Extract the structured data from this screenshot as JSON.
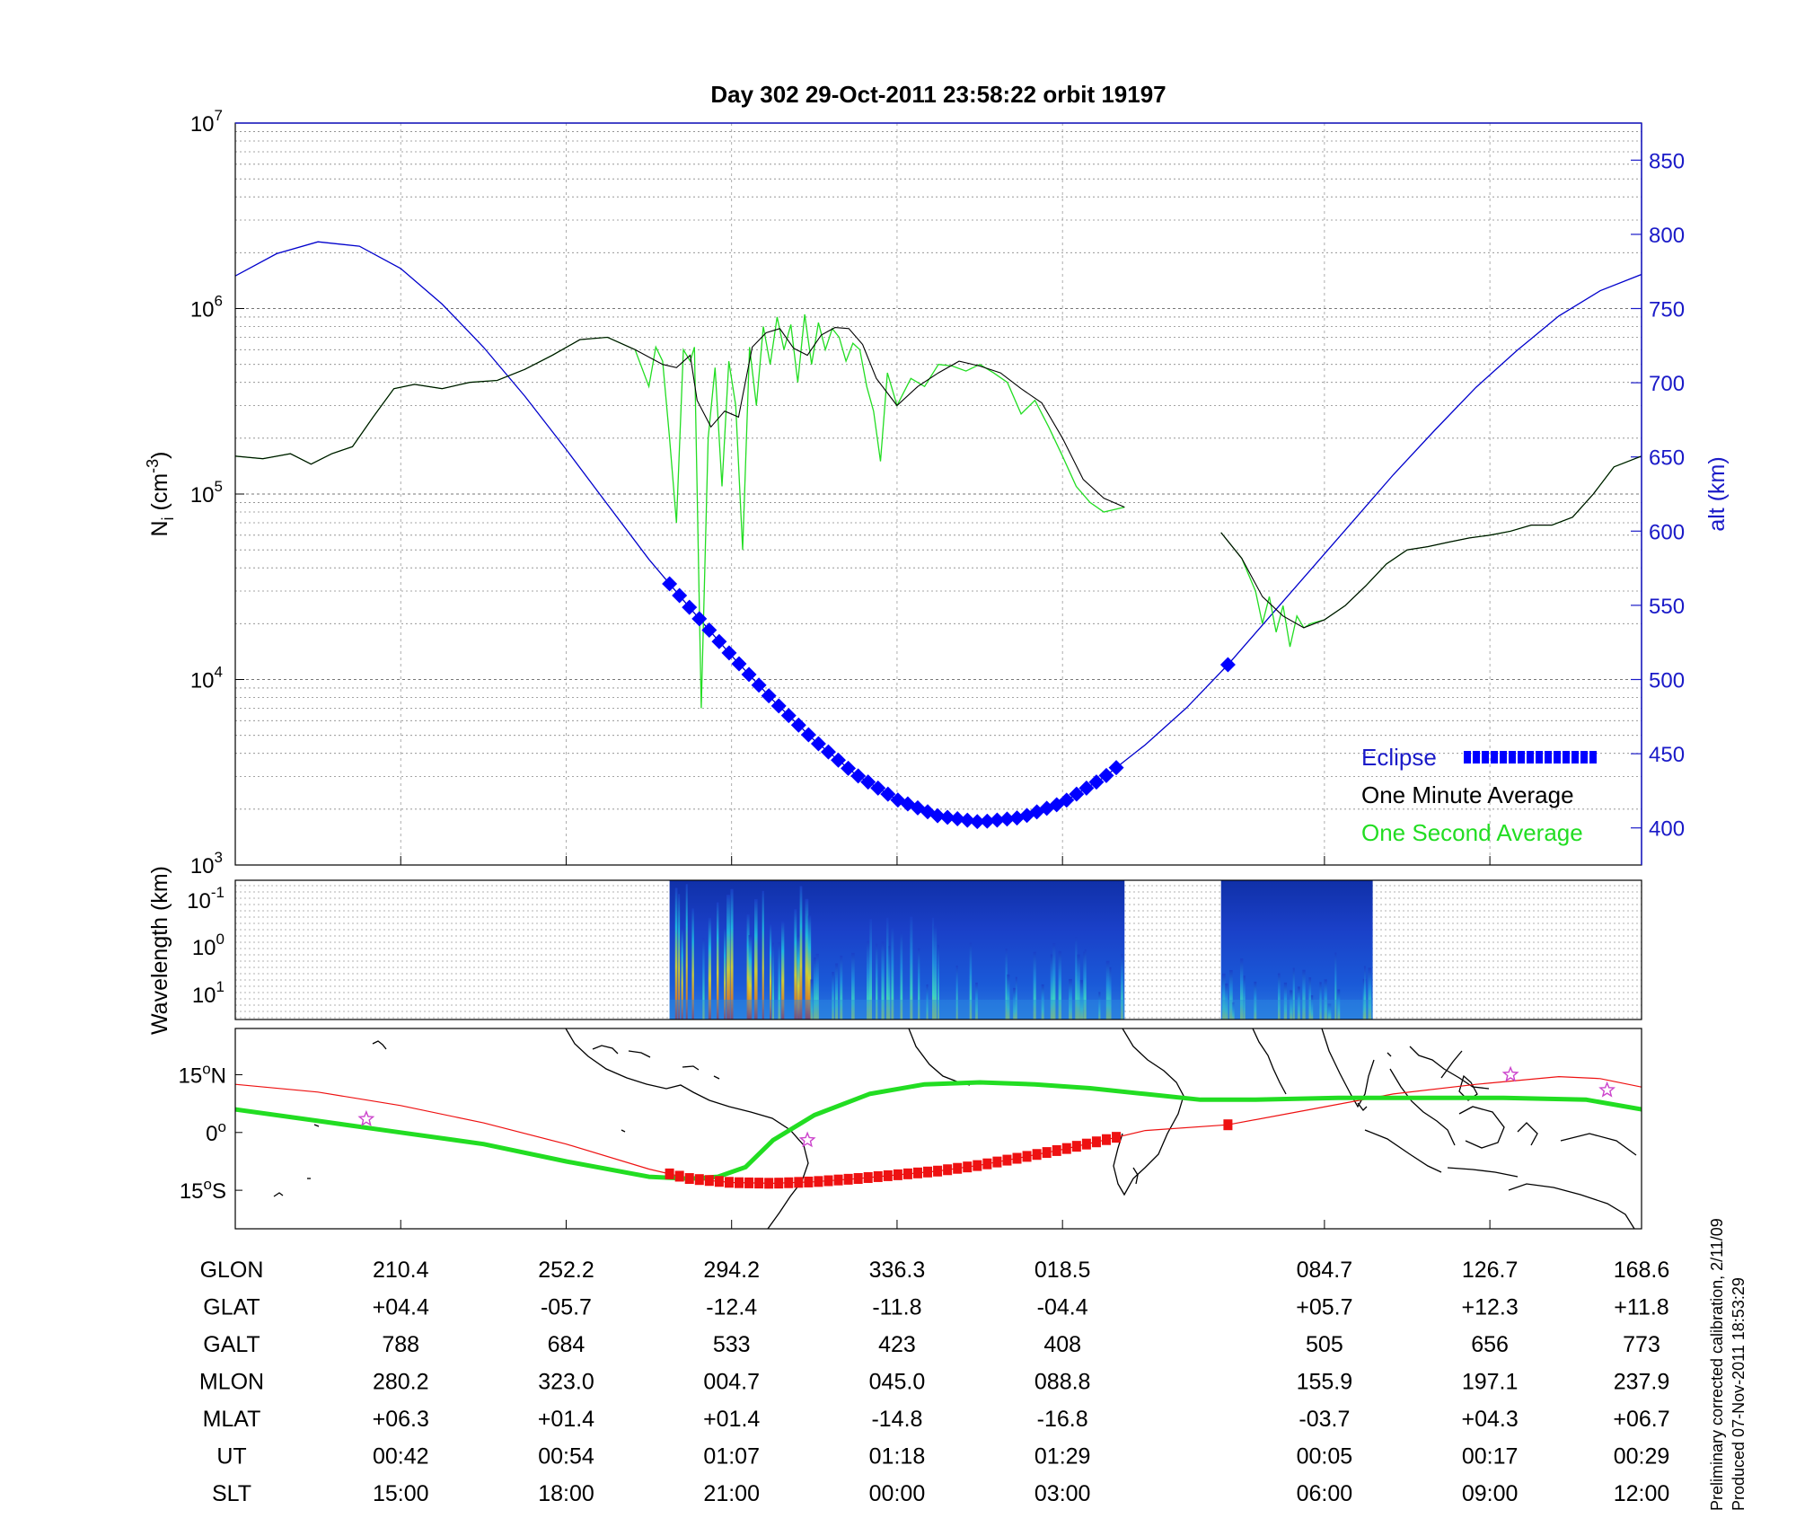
{
  "title": "Day 302  29-Oct-2011 23:58:22   orbit 19197",
  "colors": {
    "altitude": "#0000cc",
    "one_minute": "#000000",
    "one_second": "#22dd22",
    "eclipse": "#0000ff",
    "map_track": "#ee1111",
    "dip_equator": "#22dd22",
    "star": "#cc44cc"
  },
  "chart_data": [
    {
      "name": "density-panel",
      "type": "line",
      "ylabel": "N_i (cm^-3)",
      "ylabel_main": "N",
      "ylabel_sub": "i",
      "ylabel_rest": " (cm",
      "ylabel_sup": "-3",
      "ylabel_close": ")",
      "yscale": "log",
      "ylim": [
        1000,
        10000000
      ],
      "y_ticks": [
        {
          "base": "10",
          "exp": "3",
          "value": 1000
        },
        {
          "base": "10",
          "exp": "4",
          "value": 10000
        },
        {
          "base": "10",
          "exp": "5",
          "value": 100000
        },
        {
          "base": "10",
          "exp": "6",
          "value": 1000000
        },
        {
          "base": "10",
          "exp": "7",
          "value": 10000000
        }
      ],
      "y2label": "alt (km)",
      "y2lim": [
        375,
        875
      ],
      "y2_ticks": [
        "400",
        "450",
        "500",
        "550",
        "600",
        "650",
        "700",
        "750",
        "800",
        "850"
      ],
      "x_unit": "minutes from panel start",
      "xlim": [
        0,
        102
      ],
      "altitude_series": {
        "name": "alt (km)",
        "x": [
          0,
          3,
          6,
          9,
          12,
          15,
          18,
          21,
          24,
          27,
          30,
          33,
          36,
          39,
          42,
          45,
          48,
          51,
          54,
          57,
          60,
          63,
          66,
          69,
          72,
          75,
          78,
          81,
          84,
          87,
          90,
          93,
          96,
          99,
          102
        ],
        "y": [
          772,
          787,
          795,
          792,
          777,
          753,
          724,
          691,
          655,
          618,
          581,
          548,
          516,
          486,
          459,
          436,
          419,
          408,
          404,
          407,
          417,
          434,
          456,
          481,
          510,
          542,
          574,
          606,
          638,
          668,
          697,
          722,
          745,
          762,
          773
        ]
      },
      "one_minute_average": {
        "name": "One Minute Average",
        "segments": [
          {
            "x": [
              0,
              2,
              4,
              5.5,
              7,
              8.5,
              10,
              11.5,
              13,
              15,
              17,
              19,
              21,
              23,
              25,
              27,
              29,
              31,
              32,
              33,
              33.5,
              34.5,
              35.5,
              36.5,
              37.5,
              38.5,
              39.5,
              40.5,
              41.5,
              42.5,
              43.5,
              44.5,
              45.5,
              46.5,
              48,
              49.5,
              51,
              52.5,
              54,
              55.5,
              57,
              58.5,
              60,
              61.5,
              63,
              64.5
            ],
            "y": [
              160000,
              155000,
              165000,
              145000,
              165000,
              180000,
              260000,
              370000,
              390000,
              370000,
              400000,
              410000,
              470000,
              560000,
              680000,
              700000,
              600000,
              500000,
              480000,
              560000,
              320000,
              230000,
              280000,
              260000,
              620000,
              740000,
              780000,
              610000,
              560000,
              720000,
              790000,
              780000,
              640000,
              420000,
              300000,
              380000,
              450000,
              520000,
              490000,
              450000,
              370000,
              310000,
              200000,
              120000,
              95000,
              85000
            ]
          },
          {
            "x": [
              71.5,
              73,
              74.5,
              76,
              77.5,
              79,
              80.5,
              82,
              83.5,
              85,
              86.5,
              88,
              89.5,
              91,
              92.5,
              94,
              95.5,
              97,
              98.5,
              100,
              102
            ],
            "y": [
              62000,
              45000,
              28000,
              22000,
              19000,
              21000,
              25000,
              32000,
              42000,
              50000,
              52000,
              55000,
              58000,
              60000,
              63000,
              68000,
              68000,
              75000,
              100000,
              140000,
              160000
            ]
          }
        ]
      },
      "one_second_average": {
        "name": "One Second Average",
        "segments": [
          {
            "x": [
              0,
              2,
              4,
              5.5,
              7,
              8.5,
              10,
              11.5,
              13,
              15,
              17,
              19,
              21,
              23,
              25,
              27,
              29,
              30,
              30.5,
              31,
              31.5,
              32,
              32.5,
              33,
              33.3,
              33.8,
              34.3,
              34.8,
              35.3,
              35.8,
              36.3,
              36.8,
              37.3,
              37.8,
              38.3,
              38.8,
              39.3,
              39.8,
              40.3,
              40.8,
              41.3,
              41.8,
              42.3,
              42.8,
              43.3,
              43.8,
              44.3,
              44.8,
              45.3,
              45.8,
              46.3,
              46.8,
              47.3,
              48,
              49,
              50,
              51,
              52,
              53,
              54,
              55,
              56,
              57,
              58,
              59,
              60,
              61,
              62,
              63,
              64.5
            ],
            "y": [
              160000,
              155000,
              165000,
              145000,
              165000,
              180000,
              260000,
              370000,
              390000,
              370000,
              400000,
              410000,
              470000,
              560000,
              680000,
              700000,
              600000,
              380000,
              620000,
              520000,
              200000,
              70000,
              600000,
              520000,
              620000,
              7000,
              200000,
              480000,
              110000,
              520000,
              300000,
              50000,
              620000,
              300000,
              800000,
              500000,
              900000,
              600000,
              820000,
              400000,
              930000,
              500000,
              840000,
              600000,
              780000,
              700000,
              520000,
              650000,
              600000,
              380000,
              280000,
              150000,
              450000,
              300000,
              420000,
              380000,
              500000,
              490000,
              460000,
              500000,
              450000,
              400000,
              270000,
              320000,
              230000,
              160000,
              110000,
              90000,
              80000,
              85000
            ]
          },
          {
            "x": [
              71.5,
              73,
              74,
              74.5,
              75,
              75.5,
              76,
              76.5,
              77,
              77.5,
              78,
              79,
              80.5,
              82,
              83.5,
              85,
              86.5,
              88,
              89.5,
              91,
              92.5,
              94,
              95.5,
              97,
              98.5,
              100,
              102
            ],
            "y": [
              62000,
              45000,
              30000,
              20000,
              28000,
              18000,
              25000,
              15000,
              22000,
              19000,
              20000,
              21000,
              25000,
              32000,
              42000,
              50000,
              52000,
              55000,
              58000,
              60000,
              63000,
              68000,
              68000,
              75000,
              100000,
              140000,
              160000
            ]
          }
        ]
      },
      "eclipse": {
        "name": "Eclipse",
        "x_range": [
          31.5,
          64.5
        ],
        "extra_point_x": 72
      },
      "legend": {
        "position": "bottom-right",
        "items": [
          "Eclipse",
          "One Minute Average",
          "One Second Average"
        ]
      },
      "grid": true
    },
    {
      "name": "wavelength-panel",
      "type": "heatmap",
      "ylabel": "Wavelength (km)",
      "yscale": "log",
      "y_ticks": [
        {
          "base": "10",
          "exp": "-1"
        },
        {
          "base": "10",
          "exp": "0"
        },
        {
          "base": "10",
          "exp": "1"
        }
      ],
      "data_blocks_x": [
        [
          31.5,
          64.5
        ],
        [
          71.5,
          82.5
        ]
      ],
      "grid": true
    },
    {
      "name": "map-panel",
      "type": "line",
      "y_ticks": [
        {
          "num": "15",
          "sym": "o",
          "dir": "N",
          "lat": 15
        },
        {
          "num": "0",
          "sym": "o",
          "dir": "",
          "lat": 0
        },
        {
          "num": "15",
          "sym": "o",
          "dir": "S",
          "lat": -15
        }
      ],
      "ylim": [
        -25,
        27
      ],
      "orbit_track": {
        "x": [
          0,
          6,
          12,
          18,
          24,
          30,
          33,
          36,
          39,
          42,
          45,
          48,
          51,
          54,
          57,
          60,
          63,
          66,
          72,
          78,
          84,
          90,
          96,
          99,
          102
        ],
        "lat": [
          12.5,
          10.5,
          7,
          2.5,
          -3,
          -9.5,
          -12,
          -13,
          -13.2,
          -12.8,
          -12,
          -11,
          -10,
          -8.5,
          -6.5,
          -4.4,
          -2,
          0.5,
          2,
          6,
          10,
          12.5,
          14.5,
          14,
          11.8
        ]
      },
      "eclipse_track_x": [
        31.5,
        64.5
      ],
      "eclipse_extra_x": 72,
      "dip_equator": {
        "x": [
          0,
          6,
          12,
          18,
          24,
          30,
          33,
          35,
          37,
          39,
          42,
          46,
          50,
          54,
          58,
          62,
          66,
          70,
          74,
          80,
          86,
          92,
          98,
          102
        ],
        "lat": [
          6,
          3,
          0,
          -3,
          -7.5,
          -11.5,
          -12,
          -11.5,
          -9,
          -2,
          4.5,
          10,
          12.5,
          13,
          12.5,
          11.5,
          10,
          8.5,
          8.5,
          9,
          9,
          9,
          8.5,
          6
        ]
      },
      "stars": [
        {
          "x": 9.5,
          "lat": 3.5
        },
        {
          "x": 41.5,
          "lat": -2
        },
        {
          "x": 92.5,
          "lat": 15
        },
        {
          "x": 99.5,
          "lat": 11
        }
      ]
    }
  ],
  "table": {
    "x_positions": [
      12,
      24,
      36,
      48,
      60,
      79,
      91,
      102
    ],
    "rows": [
      {
        "label": "GLON",
        "values": [
          "210.4",
          "252.2",
          "294.2",
          "336.3",
          "018.5",
          "084.7",
          "126.7",
          "168.6"
        ]
      },
      {
        "label": "GLAT",
        "values": [
          "+04.4",
          "-05.7",
          "-12.4",
          "-11.8",
          "-04.4",
          "+05.7",
          "+12.3",
          "+11.8"
        ]
      },
      {
        "label": "GALT",
        "values": [
          "788",
          "684",
          "533",
          "423",
          "408",
          "505",
          "656",
          "773"
        ]
      },
      {
        "label": "MLON",
        "values": [
          "280.2",
          "323.0",
          "004.7",
          "045.0",
          "088.8",
          "155.9",
          "197.1",
          "237.9"
        ]
      },
      {
        "label": "MLAT",
        "values": [
          "+06.3",
          "+01.4",
          "+01.4",
          "-14.8",
          "-16.8",
          "-03.7",
          "+04.3",
          "+06.7"
        ]
      },
      {
        "label": "UT",
        "values": [
          "00:42",
          "00:54",
          "01:07",
          "01:18",
          "01:29",
          "00:05",
          "00:17",
          "00:29"
        ]
      },
      {
        "label": "SLT",
        "values": [
          "15:00",
          "18:00",
          "21:00",
          "00:00",
          "03:00",
          "06:00",
          "09:00",
          "12:00"
        ]
      }
    ]
  },
  "footnote": {
    "line1": "Preliminary corrected calibration, 2/11/09",
    "line2": "Produced 07-Nov-2011 18:53:29"
  }
}
